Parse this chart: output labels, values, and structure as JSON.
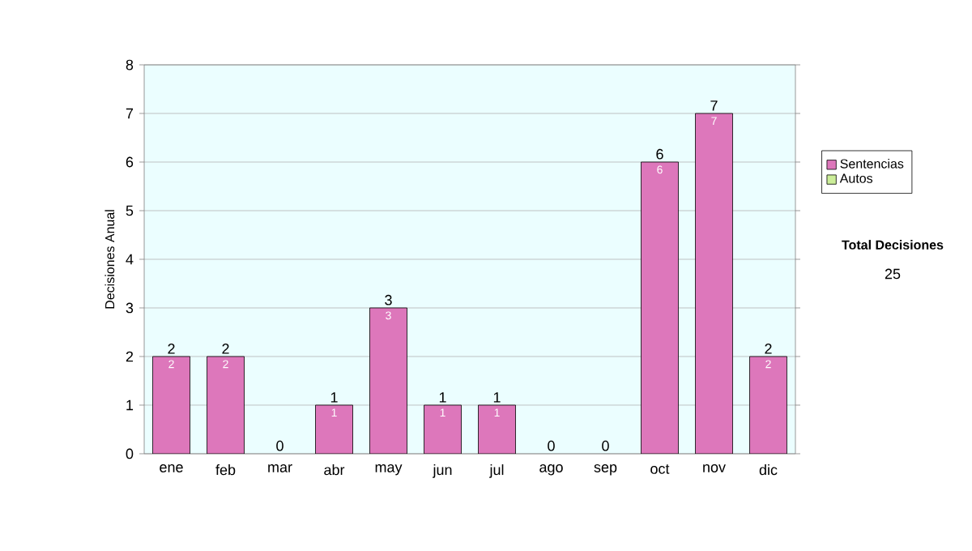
{
  "chart_data": {
    "type": "bar",
    "stacked": true,
    "ylabel": "Decisiones Anual",
    "categories": [
      "ene",
      "feb",
      "mar",
      "abr",
      "may",
      "jun",
      "jul",
      "ago",
      "sep",
      "oct",
      "nov",
      "dic"
    ],
    "series": [
      {
        "name": "Sentencias",
        "color": "#dd77bb",
        "values": [
          2,
          2,
          0,
          1,
          3,
          1,
          1,
          0,
          0,
          6,
          7,
          2
        ],
        "value_labels": [
          "2",
          "2",
          null,
          "1",
          "3",
          "1",
          "1",
          null,
          null,
          "6",
          "7",
          "2"
        ]
      },
      {
        "name": "Autos",
        "color": "#ccee99",
        "values": [
          0,
          0,
          0,
          0,
          0,
          0,
          0,
          0,
          0,
          0,
          0,
          0
        ]
      }
    ],
    "totals": [
      "2",
      "2",
      "0",
      "1",
      "3",
      "1",
      "1",
      "0",
      "0",
      "6",
      "7",
      "2"
    ],
    "ylim": [
      0,
      8
    ],
    "yticks": [
      0,
      1,
      2,
      3,
      4,
      5,
      6,
      7,
      8
    ],
    "grid": "y",
    "legend": "right",
    "annotations": [
      "Total Decisiones",
      "25"
    ]
  }
}
